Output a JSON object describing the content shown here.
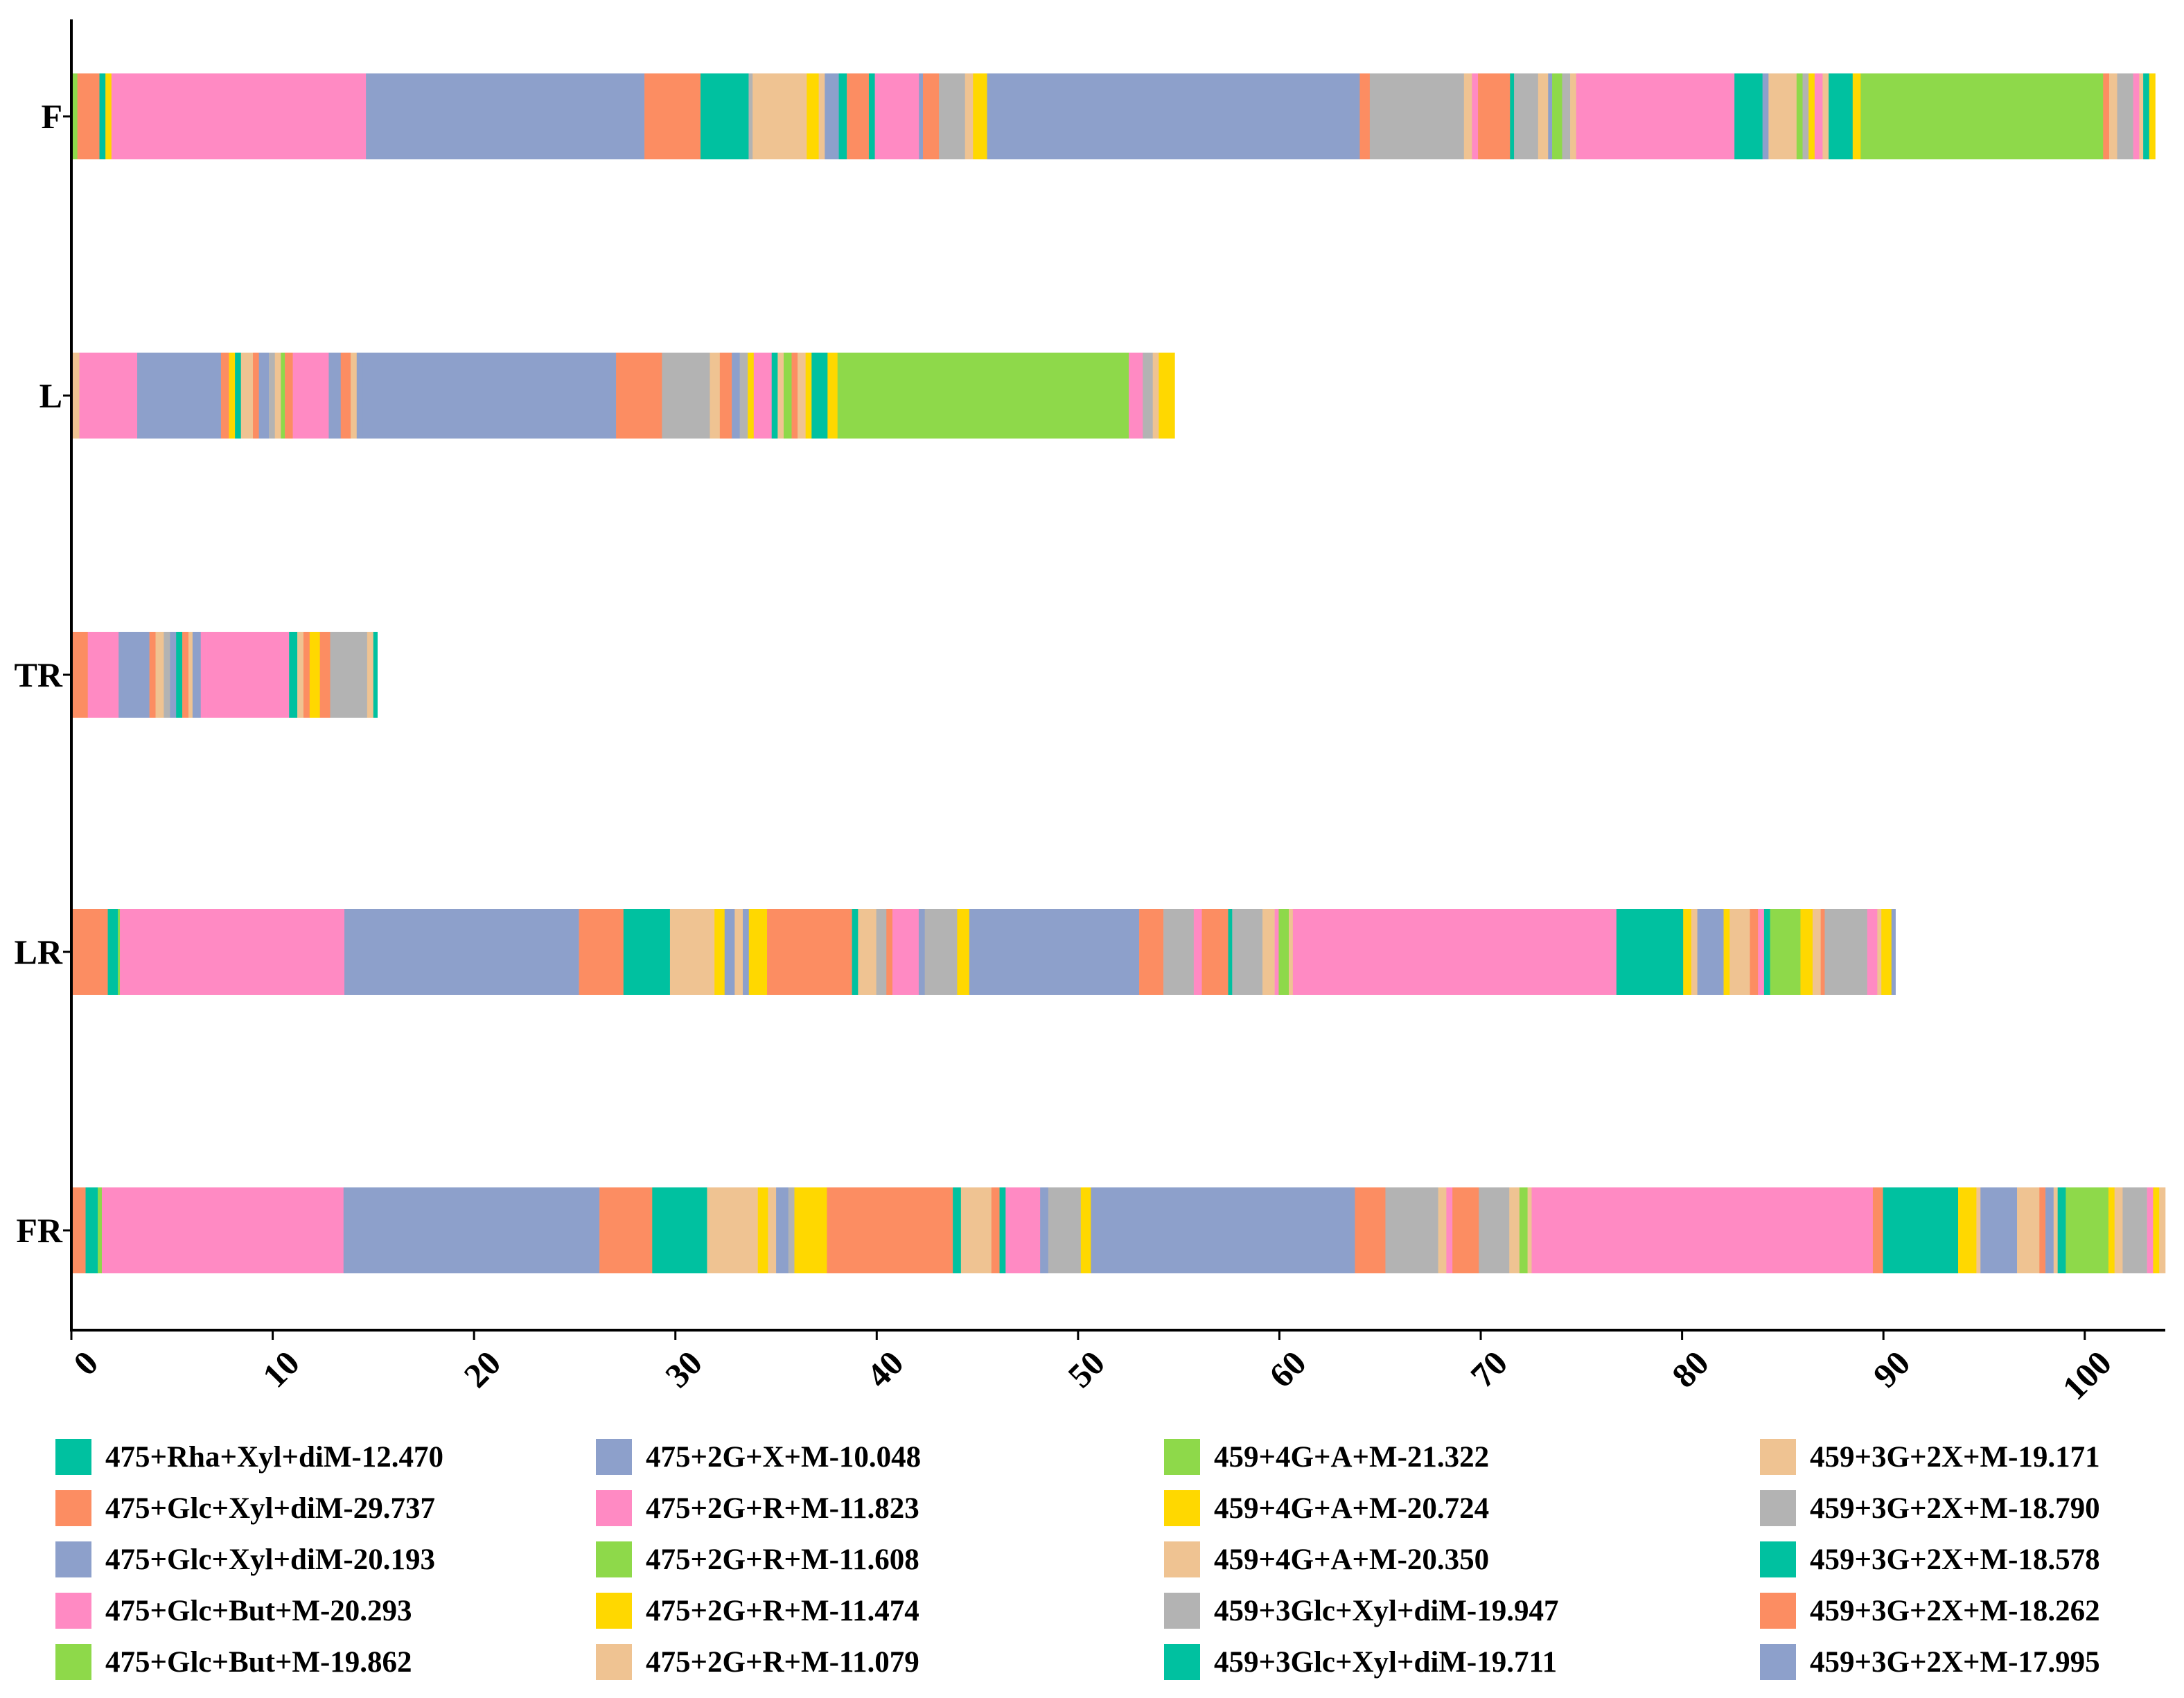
{
  "chart_data": {
    "type": "bar",
    "orientation": "horizontal",
    "stacked": true,
    "title": "",
    "xlabel": "",
    "ylabel": "",
    "xlim": [
      0,
      104
    ],
    "x_ticks": [
      "0",
      "10",
      "20",
      "30",
      "40",
      "50",
      "60",
      "70",
      "80",
      "90",
      "100"
    ],
    "categories": [
      "F",
      "L",
      "TR",
      "LR",
      "FR"
    ],
    "palette": [
      "#00C1A0",
      "#FC8D62",
      "#8DA0CB",
      "#FF8AC3",
      "#8ED94A",
      "#FFD800",
      "#EFC392",
      "#B3B3B3"
    ],
    "legend": [
      {
        "label": "475+Rha+Xyl+diM-12.470",
        "color": "#00C1A0"
      },
      {
        "label": "475+Glc+Xyl+diM-29.737",
        "color": "#FC8D62"
      },
      {
        "label": "475+Glc+Xyl+diM-20.193",
        "color": "#8DA0CB"
      },
      {
        "label": "475+Glc+But+M-20.293",
        "color": "#FF8AC3"
      },
      {
        "label": "475+Glc+But+M-19.862",
        "color": "#8ED94A"
      },
      {
        "label": "475+2G+X+M-10.048",
        "color": "#8DA0CB"
      },
      {
        "label": "475+2G+R+M-11.823",
        "color": "#FF8AC3"
      },
      {
        "label": "475+2G+R+M-11.608",
        "color": "#8ED94A"
      },
      {
        "label": "475+2G+R+M-11.474",
        "color": "#FFD800"
      },
      {
        "label": "475+2G+R+M-11.079",
        "color": "#EFC392"
      },
      {
        "label": "459+4G+A+M-21.322",
        "color": "#8ED94A"
      },
      {
        "label": "459+4G+A+M-20.724",
        "color": "#FFD800"
      },
      {
        "label": "459+4G+A+M-20.350",
        "color": "#EFC392"
      },
      {
        "label": "459+3Glc+Xyl+diM-19.947",
        "color": "#B3B3B3"
      },
      {
        "label": "459+3Glc+Xyl+diM-19.711",
        "color": "#00C1A0"
      },
      {
        "label": "459+3G+2X+M-19.171",
        "color": "#EFC392"
      },
      {
        "label": "459+3G+2X+M-18.790",
        "color": "#B3B3B3"
      },
      {
        "label": "459+3G+2X+M-18.578",
        "color": "#00C1A0"
      },
      {
        "label": "459+3G+2X+M-18.262",
        "color": "#FC8D62"
      },
      {
        "label": "459+3G+2X+M-17.995",
        "color": "#8DA0CB"
      }
    ],
    "bars": [
      {
        "category": "F",
        "total": 103.5,
        "segments": [
          {
            "w": 0.3,
            "c": 4
          },
          {
            "w": 1.1,
            "c": 1
          },
          {
            "w": 0.3,
            "c": 0
          },
          {
            "w": 0.3,
            "c": 5
          },
          {
            "w": 12.7,
            "c": 3
          },
          {
            "w": 13.9,
            "c": 2
          },
          {
            "w": 2.8,
            "c": 1
          },
          {
            "w": 2.4,
            "c": 0
          },
          {
            "w": 0.2,
            "c": 7
          },
          {
            "w": 2.7,
            "c": 6
          },
          {
            "w": 0.6,
            "c": 5
          },
          {
            "w": 0.3,
            "c": 6
          },
          {
            "w": 0.7,
            "c": 2
          },
          {
            "w": 0.4,
            "c": 0
          },
          {
            "w": 1.1,
            "c": 1
          },
          {
            "w": 0.3,
            "c": 0
          },
          {
            "w": 2.2,
            "c": 3
          },
          {
            "w": 0.2,
            "c": 2
          },
          {
            "w": 0.8,
            "c": 1
          },
          {
            "w": 1.3,
            "c": 7
          },
          {
            "w": 0.4,
            "c": 6
          },
          {
            "w": 0.7,
            "c": 5
          },
          {
            "w": 18.6,
            "c": 2
          },
          {
            "w": 0.5,
            "c": 1
          },
          {
            "w": 4.7,
            "c": 7
          },
          {
            "w": 0.4,
            "c": 6
          },
          {
            "w": 0.3,
            "c": 3
          },
          {
            "w": 1.6,
            "c": 1
          },
          {
            "w": 0.2,
            "c": 0
          },
          {
            "w": 1.2,
            "c": 7
          },
          {
            "w": 0.5,
            "c": 6
          },
          {
            "w": 0.2,
            "c": 2
          },
          {
            "w": 0.5,
            "c": 4
          },
          {
            "w": 0.4,
            "c": 7
          },
          {
            "w": 0.3,
            "c": 6
          },
          {
            "w": 7.9,
            "c": 3
          },
          {
            "w": 1.4,
            "c": 0
          },
          {
            "w": 0.3,
            "c": 2
          },
          {
            "w": 1.4,
            "c": 6
          },
          {
            "w": 0.3,
            "c": 4
          },
          {
            "w": 0.3,
            "c": 7
          },
          {
            "w": 0.3,
            "c": 5
          },
          {
            "w": 0.4,
            "c": 3
          },
          {
            "w": 0.3,
            "c": 6
          },
          {
            "w": 1.2,
            "c": 0
          },
          {
            "w": 0.4,
            "c": 5
          },
          {
            "w": 12.1,
            "c": 4
          },
          {
            "w": 0.3,
            "c": 1
          },
          {
            "w": 0.4,
            "c": 6
          },
          {
            "w": 0.8,
            "c": 7
          },
          {
            "w": 0.3,
            "c": 3
          },
          {
            "w": 0.2,
            "c": 6
          },
          {
            "w": 0.3,
            "c": 0
          },
          {
            "w": 0.3,
            "c": 5
          }
        ]
      },
      {
        "category": "L",
        "total": 54.8,
        "segments": [
          {
            "w": 0.4,
            "c": 6
          },
          {
            "w": 2.9,
            "c": 3
          },
          {
            "w": 4.2,
            "c": 2
          },
          {
            "w": 0.4,
            "c": 1
          },
          {
            "w": 0.3,
            "c": 5
          },
          {
            "w": 0.3,
            "c": 0
          },
          {
            "w": 0.6,
            "c": 6
          },
          {
            "w": 0.3,
            "c": 1
          },
          {
            "w": 0.5,
            "c": 2
          },
          {
            "w": 0.3,
            "c": 7
          },
          {
            "w": 0.3,
            "c": 6
          },
          {
            "w": 0.2,
            "c": 4
          },
          {
            "w": 0.4,
            "c": 1
          },
          {
            "w": 1.8,
            "c": 3
          },
          {
            "w": 0.6,
            "c": 2
          },
          {
            "w": 0.5,
            "c": 1
          },
          {
            "w": 0.3,
            "c": 6
          },
          {
            "w": 0.3,
            "c": 2
          },
          {
            "w": 12.7,
            "c": 2
          },
          {
            "w": 2.3,
            "c": 1
          },
          {
            "w": 2.4,
            "c": 7
          },
          {
            "w": 0.5,
            "c": 6
          },
          {
            "w": 0.6,
            "c": 1
          },
          {
            "w": 0.4,
            "c": 2
          },
          {
            "w": 0.4,
            "c": 7
          },
          {
            "w": 0.3,
            "c": 5
          },
          {
            "w": 0.9,
            "c": 3
          },
          {
            "w": 0.3,
            "c": 0
          },
          {
            "w": 0.3,
            "c": 6
          },
          {
            "w": 0.4,
            "c": 4
          },
          {
            "w": 0.3,
            "c": 1
          },
          {
            "w": 0.4,
            "c": 6
          },
          {
            "w": 0.3,
            "c": 5
          },
          {
            "w": 0.8,
            "c": 0
          },
          {
            "w": 0.5,
            "c": 5
          },
          {
            "w": 14.6,
            "c": 4
          },
          {
            "w": 0.7,
            "c": 3
          },
          {
            "w": 0.5,
            "c": 7
          },
          {
            "w": 0.3,
            "c": 6
          },
          {
            "w": 0.8,
            "c": 5
          }
        ]
      },
      {
        "category": "TR",
        "total": 15.2,
        "segments": [
          {
            "w": 0.8,
            "c": 1
          },
          {
            "w": 1.5,
            "c": 3
          },
          {
            "w": 1.5,
            "c": 2
          },
          {
            "w": 0.3,
            "c": 1
          },
          {
            "w": 0.4,
            "c": 6
          },
          {
            "w": 0.3,
            "c": 7
          },
          {
            "w": 0.3,
            "c": 2
          },
          {
            "w": 0.3,
            "c": 0
          },
          {
            "w": 0.3,
            "c": 1
          },
          {
            "w": 0.2,
            "c": 6
          },
          {
            "w": 0.4,
            "c": 2
          },
          {
            "w": 0.3,
            "c": 3
          },
          {
            "w": 4.0,
            "c": 3
          },
          {
            "w": 0.4,
            "c": 0
          },
          {
            "w": 0.3,
            "c": 6
          },
          {
            "w": 0.3,
            "c": 1
          },
          {
            "w": 0.5,
            "c": 5
          },
          {
            "w": 0.5,
            "c": 1
          },
          {
            "w": 1.8,
            "c": 7
          },
          {
            "w": 0.3,
            "c": 6
          },
          {
            "w": 0.2,
            "c": 0
          }
        ]
      },
      {
        "category": "LR",
        "total": 90.6,
        "segments": [
          {
            "w": 1.8,
            "c": 1
          },
          {
            "w": 0.5,
            "c": 0
          },
          {
            "w": 0.1,
            "c": 4
          },
          {
            "w": 11.1,
            "c": 3
          },
          {
            "w": 11.6,
            "c": 2
          },
          {
            "w": 2.2,
            "c": 1
          },
          {
            "w": 2.3,
            "c": 0
          },
          {
            "w": 2.2,
            "c": 6
          },
          {
            "w": 0.5,
            "c": 5
          },
          {
            "w": 0.5,
            "c": 2
          },
          {
            "w": 0.4,
            "c": 6
          },
          {
            "w": 0.3,
            "c": 2
          },
          {
            "w": 0.9,
            "c": 5
          },
          {
            "w": 4.2,
            "c": 1
          },
          {
            "w": 0.3,
            "c": 0
          },
          {
            "w": 0.9,
            "c": 6
          },
          {
            "w": 0.5,
            "c": 7
          },
          {
            "w": 0.3,
            "c": 1
          },
          {
            "w": 1.3,
            "c": 3
          },
          {
            "w": 0.3,
            "c": 2
          },
          {
            "w": 1.6,
            "c": 7
          },
          {
            "w": 0.6,
            "c": 5
          },
          {
            "w": 8.4,
            "c": 2
          },
          {
            "w": 1.2,
            "c": 1
          },
          {
            "w": 1.5,
            "c": 7
          },
          {
            "w": 0.4,
            "c": 3
          },
          {
            "w": 1.3,
            "c": 1
          },
          {
            "w": 0.2,
            "c": 0
          },
          {
            "w": 1.5,
            "c": 7
          },
          {
            "w": 0.6,
            "c": 6
          },
          {
            "w": 0.2,
            "c": 3
          },
          {
            "w": 0.5,
            "c": 4
          },
          {
            "w": 0.2,
            "c": 6
          },
          {
            "w": 16.0,
            "c": 3
          },
          {
            "w": 3.3,
            "c": 0
          },
          {
            "w": 0.4,
            "c": 5
          },
          {
            "w": 0.3,
            "c": 6
          },
          {
            "w": 1.3,
            "c": 2
          },
          {
            "w": 0.3,
            "c": 5
          },
          {
            "w": 1.0,
            "c": 6
          },
          {
            "w": 0.4,
            "c": 1
          },
          {
            "w": 0.3,
            "c": 3
          },
          {
            "w": 0.3,
            "c": 0
          },
          {
            "w": 1.5,
            "c": 4
          },
          {
            "w": 0.6,
            "c": 5
          },
          {
            "w": 0.4,
            "c": 6
          },
          {
            "w": 0.2,
            "c": 1
          },
          {
            "w": 2.1,
            "c": 7
          },
          {
            "w": 0.5,
            "c": 3
          },
          {
            "w": 0.2,
            "c": 6
          },
          {
            "w": 0.5,
            "c": 5
          },
          {
            "w": 0.2,
            "c": 2
          }
        ]
      },
      {
        "category": "FR",
        "total": 104.0,
        "segments": [
          {
            "w": 0.7,
            "c": 1
          },
          {
            "w": 0.6,
            "c": 0
          },
          {
            "w": 0.2,
            "c": 4
          },
          {
            "w": 11.9,
            "c": 3
          },
          {
            "w": 12.6,
            "c": 2
          },
          {
            "w": 2.6,
            "c": 1
          },
          {
            "w": 2.7,
            "c": 0
          },
          {
            "w": 2.5,
            "c": 6
          },
          {
            "w": 0.5,
            "c": 5
          },
          {
            "w": 0.4,
            "c": 6
          },
          {
            "w": 0.6,
            "c": 2
          },
          {
            "w": 0.3,
            "c": 7
          },
          {
            "w": 1.6,
            "c": 5
          },
          {
            "w": 6.2,
            "c": 1
          },
          {
            "w": 0.4,
            "c": 0
          },
          {
            "w": 1.5,
            "c": 6
          },
          {
            "w": 0.4,
            "c": 1
          },
          {
            "w": 0.3,
            "c": 0
          },
          {
            "w": 1.7,
            "c": 3
          },
          {
            "w": 0.4,
            "c": 2
          },
          {
            "w": 1.6,
            "c": 7
          },
          {
            "w": 0.5,
            "c": 5
          },
          {
            "w": 13.0,
            "c": 2
          },
          {
            "w": 1.5,
            "c": 1
          },
          {
            "w": 2.6,
            "c": 7
          },
          {
            "w": 0.4,
            "c": 6
          },
          {
            "w": 0.3,
            "c": 3
          },
          {
            "w": 1.3,
            "c": 1
          },
          {
            "w": 1.5,
            "c": 7
          },
          {
            "w": 0.5,
            "c": 6
          },
          {
            "w": 0.4,
            "c": 4
          },
          {
            "w": 0.2,
            "c": 6
          },
          {
            "w": 16.8,
            "c": 3
          },
          {
            "w": 0.5,
            "c": 1
          },
          {
            "w": 3.7,
            "c": 0
          },
          {
            "w": 0.9,
            "c": 5
          },
          {
            "w": 0.2,
            "c": 6
          },
          {
            "w": 1.8,
            "c": 2
          },
          {
            "w": 0.3,
            "c": 6
          },
          {
            "w": 0.8,
            "c": 6
          },
          {
            "w": 0.3,
            "c": 1
          },
          {
            "w": 0.4,
            "c": 2
          },
          {
            "w": 0.2,
            "c": 6
          },
          {
            "w": 0.4,
            "c": 0
          },
          {
            "w": 2.1,
            "c": 4
          },
          {
            "w": 0.3,
            "c": 5
          },
          {
            "w": 0.4,
            "c": 6
          },
          {
            "w": 1.2,
            "c": 7
          },
          {
            "w": 0.3,
            "c": 3
          },
          {
            "w": 0.3,
            "c": 5
          },
          {
            "w": 0.3,
            "c": 6
          }
        ]
      }
    ]
  }
}
